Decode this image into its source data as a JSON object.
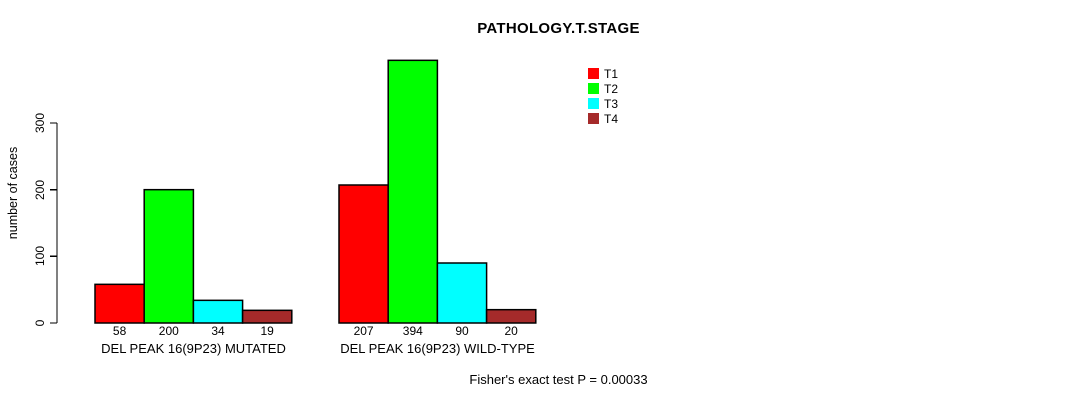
{
  "chart_data": {
    "type": "bar",
    "title": "PATHOLOGY.T.STAGE",
    "ylabel": "number of cases",
    "xlabel": "",
    "ylim": [
      0,
      300
    ],
    "yticks": [
      0,
      100,
      200,
      300
    ],
    "grid": false,
    "legend_position": "top-right",
    "categories": [
      "DEL PEAK 16(9P23) MUTATED",
      "DEL PEAK 16(9P23) WILD-TYPE"
    ],
    "series": [
      {
        "name": "T1",
        "color": "#FF0000",
        "values": [
          58,
          207
        ]
      },
      {
        "name": "T2",
        "color": "#00FF00",
        "values": [
          200,
          394
        ]
      },
      {
        "name": "T3",
        "color": "#00FFFF",
        "values": [
          34,
          90
        ]
      },
      {
        "name": "T4",
        "color": "#A52A2A",
        "values": [
          19,
          20
        ]
      }
    ],
    "bar_value_labels": [
      [
        58,
        200,
        34,
        19
      ],
      [
        207,
        394,
        90,
        20
      ]
    ],
    "annotation": "Fisher's exact test P = 0.00033",
    "axis_color": "#000000",
    "bar_border_color": "#000000",
    "text_color": "#000000"
  }
}
